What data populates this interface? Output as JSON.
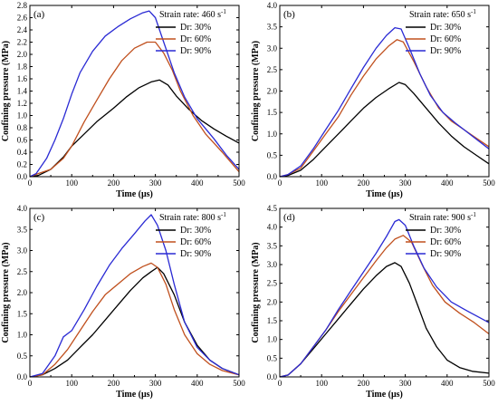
{
  "colors": {
    "s30": "#000000",
    "s60": "#c0501e",
    "s90": "#2a2ad4"
  },
  "chart_data": [
    {
      "type": "line",
      "panel_label": "(a)",
      "legend_title": "Strain rate: 460 s",
      "legend_title_sup": "-1",
      "xlabel": "Time (μs)",
      "ylabel": "Confining pressure (MPa)",
      "xlim": [
        0,
        500
      ],
      "ylim": [
        0,
        2.8
      ],
      "xticks": [
        0,
        100,
        200,
        300,
        400,
        500
      ],
      "yticks": [
        0.0,
        0.2,
        0.4,
        0.6,
        0.8,
        1.0,
        1.2,
        1.4,
        1.6,
        1.8,
        2.0,
        2.2,
        2.4,
        2.6,
        2.8
      ],
      "ytick_labels": [
        "0.0",
        "0.2",
        "0.4",
        "0.6",
        "0.8",
        "1.0",
        "1.2",
        "1.4",
        "1.6",
        "1.8",
        "2.0",
        "2.2",
        "2.4",
        "2.6",
        "2.8"
      ],
      "series": [
        {
          "name": "Dr: 30%",
          "color_key": "s30",
          "points": [
            [
              0,
              0
            ],
            [
              20,
              0.02
            ],
            [
              50,
              0.12
            ],
            [
              80,
              0.32
            ],
            [
              100,
              0.5
            ],
            [
              130,
              0.7
            ],
            [
              160,
              0.9
            ],
            [
              200,
              1.12
            ],
            [
              230,
              1.3
            ],
            [
              260,
              1.45
            ],
            [
              290,
              1.55
            ],
            [
              310,
              1.58
            ],
            [
              330,
              1.5
            ],
            [
              350,
              1.32
            ],
            [
              380,
              1.1
            ],
            [
              410,
              0.92
            ],
            [
              440,
              0.78
            ],
            [
              470,
              0.66
            ],
            [
              500,
              0.55
            ]
          ]
        },
        {
          "name": "Dr: 60%",
          "color_key": "s60",
          "points": [
            [
              0,
              0
            ],
            [
              20,
              0.05
            ],
            [
              50,
              0.12
            ],
            [
              80,
              0.3
            ],
            [
              100,
              0.5
            ],
            [
              130,
              0.9
            ],
            [
              160,
              1.25
            ],
            [
              190,
              1.6
            ],
            [
              220,
              1.9
            ],
            [
              250,
              2.1
            ],
            [
              280,
              2.2
            ],
            [
              300,
              2.2
            ],
            [
              320,
              2.02
            ],
            [
              340,
              1.75
            ],
            [
              360,
              1.4
            ],
            [
              390,
              1.0
            ],
            [
              420,
              0.7
            ],
            [
              460,
              0.4
            ],
            [
              500,
              0.08
            ]
          ]
        },
        {
          "name": "Dr: 90%",
          "color_key": "s90",
          "points": [
            [
              0,
              0
            ],
            [
              15,
              0.05
            ],
            [
              40,
              0.3
            ],
            [
              60,
              0.6
            ],
            [
              80,
              0.95
            ],
            [
              100,
              1.35
            ],
            [
              120,
              1.7
            ],
            [
              150,
              2.05
            ],
            [
              180,
              2.3
            ],
            [
              210,
              2.45
            ],
            [
              240,
              2.58
            ],
            [
              270,
              2.68
            ],
            [
              285,
              2.71
            ],
            [
              300,
              2.6
            ],
            [
              320,
              2.2
            ],
            [
              345,
              1.7
            ],
            [
              370,
              1.3
            ],
            [
              400,
              0.95
            ],
            [
              440,
              0.62
            ],
            [
              470,
              0.35
            ],
            [
              500,
              0.12
            ]
          ]
        }
      ]
    },
    {
      "type": "line",
      "panel_label": "(b)",
      "legend_title": "Strain rate: 650 s",
      "legend_title_sup": "-1",
      "xlabel": "Time (μs)",
      "ylabel": "Confining pressure (MPa)",
      "xlim": [
        0,
        500
      ],
      "ylim": [
        0,
        4.0
      ],
      "xticks": [
        0,
        100,
        200,
        300,
        400,
        500
      ],
      "yticks": [
        0.0,
        0.5,
        1.0,
        1.5,
        2.0,
        2.5,
        3.0,
        3.5,
        4.0
      ],
      "ytick_labels": [
        "0.0",
        "0.5",
        "1.0",
        "1.5",
        "2.0",
        "2.5",
        "3.0",
        "3.5",
        "4.0"
      ],
      "series": [
        {
          "name": "Dr: 30%",
          "color_key": "s30",
          "points": [
            [
              0,
              0
            ],
            [
              20,
              0.03
            ],
            [
              50,
              0.15
            ],
            [
              80,
              0.4
            ],
            [
              110,
              0.7
            ],
            [
              140,
              1.0
            ],
            [
              170,
              1.3
            ],
            [
              200,
              1.6
            ],
            [
              230,
              1.85
            ],
            [
              260,
              2.05
            ],
            [
              285,
              2.2
            ],
            [
              300,
              2.15
            ],
            [
              320,
              1.95
            ],
            [
              350,
              1.6
            ],
            [
              380,
              1.25
            ],
            [
              410,
              0.95
            ],
            [
              440,
              0.7
            ],
            [
              470,
              0.5
            ],
            [
              500,
              0.3
            ]
          ]
        },
        {
          "name": "Dr: 60%",
          "color_key": "s60",
          "points": [
            [
              0,
              0
            ],
            [
              20,
              0.05
            ],
            [
              50,
              0.2
            ],
            [
              80,
              0.6
            ],
            [
              110,
              1.0
            ],
            [
              140,
              1.4
            ],
            [
              170,
              1.9
            ],
            [
              200,
              2.35
            ],
            [
              230,
              2.75
            ],
            [
              260,
              3.05
            ],
            [
              280,
              3.2
            ],
            [
              295,
              3.15
            ],
            [
              320,
              2.7
            ],
            [
              350,
              2.1
            ],
            [
              380,
              1.6
            ],
            [
              410,
              1.3
            ],
            [
              440,
              1.1
            ],
            [
              470,
              0.9
            ],
            [
              500,
              0.7
            ]
          ]
        },
        {
          "name": "Dr: 90%",
          "color_key": "s90",
          "points": [
            [
              0,
              0
            ],
            [
              20,
              0.05
            ],
            [
              50,
              0.25
            ],
            [
              80,
              0.65
            ],
            [
              110,
              1.1
            ],
            [
              140,
              1.55
            ],
            [
              170,
              2.05
            ],
            [
              200,
              2.55
            ],
            [
              230,
              3.0
            ],
            [
              255,
              3.3
            ],
            [
              275,
              3.48
            ],
            [
              290,
              3.45
            ],
            [
              310,
              3.0
            ],
            [
              335,
              2.4
            ],
            [
              360,
              1.9
            ],
            [
              390,
              1.5
            ],
            [
              420,
              1.25
            ],
            [
              460,
              0.95
            ],
            [
              500,
              0.65
            ]
          ]
        }
      ]
    },
    {
      "type": "line",
      "panel_label": "(c)",
      "legend_title": "Strain rate: 800 s",
      "legend_title_sup": "-1",
      "xlabel": "Time (μs)",
      "ylabel": "Confining pressure (MPa)",
      "xlim": [
        0,
        500
      ],
      "ylim": [
        0,
        4.0
      ],
      "xticks": [
        0,
        100,
        200,
        300,
        400,
        500
      ],
      "yticks": [
        0.0,
        0.5,
        1.0,
        1.5,
        2.0,
        2.5,
        3.0,
        3.5,
        4.0
      ],
      "ytick_labels": [
        "0.0",
        "0.5",
        "1.0",
        "1.5",
        "2.0",
        "2.5",
        "3.0",
        "3.5",
        "4.0"
      ],
      "series": [
        {
          "name": "Dr: 30%",
          "color_key": "s30",
          "points": [
            [
              0,
              0
            ],
            [
              30,
              0.05
            ],
            [
              60,
              0.2
            ],
            [
              90,
              0.4
            ],
            [
              120,
              0.7
            ],
            [
              150,
              1.0
            ],
            [
              180,
              1.35
            ],
            [
              210,
              1.7
            ],
            [
              240,
              2.05
            ],
            [
              270,
              2.35
            ],
            [
              290,
              2.5
            ],
            [
              305,
              2.6
            ],
            [
              320,
              2.45
            ],
            [
              345,
              1.95
            ],
            [
              370,
              1.3
            ],
            [
              400,
              0.75
            ],
            [
              430,
              0.4
            ],
            [
              460,
              0.2
            ],
            [
              500,
              0.05
            ]
          ]
        },
        {
          "name": "Dr: 60%",
          "color_key": "s60",
          "points": [
            [
              0,
              0
            ],
            [
              30,
              0.05
            ],
            [
              60,
              0.3
            ],
            [
              90,
              0.65
            ],
            [
              120,
              1.1
            ],
            [
              150,
              1.55
            ],
            [
              180,
              1.95
            ],
            [
              210,
              2.2
            ],
            [
              240,
              2.45
            ],
            [
              270,
              2.62
            ],
            [
              290,
              2.7
            ],
            [
              305,
              2.6
            ],
            [
              325,
              2.2
            ],
            [
              345,
              1.6
            ],
            [
              370,
              1.0
            ],
            [
              400,
              0.55
            ],
            [
              430,
              0.3
            ],
            [
              460,
              0.15
            ],
            [
              500,
              0.05
            ]
          ]
        },
        {
          "name": "Dr: 90%",
          "color_key": "s90",
          "points": [
            [
              0,
              0
            ],
            [
              30,
              0.08
            ],
            [
              60,
              0.5
            ],
            [
              80,
              0.95
            ],
            [
              100,
              1.1
            ],
            [
              130,
              1.6
            ],
            [
              160,
              2.15
            ],
            [
              190,
              2.65
            ],
            [
              220,
              3.05
            ],
            [
              250,
              3.4
            ],
            [
              275,
              3.7
            ],
            [
              290,
              3.85
            ],
            [
              305,
              3.6
            ],
            [
              325,
              3.0
            ],
            [
              345,
              2.2
            ],
            [
              370,
              1.3
            ],
            [
              400,
              0.7
            ],
            [
              430,
              0.4
            ],
            [
              460,
              0.2
            ],
            [
              500,
              0.05
            ]
          ]
        }
      ]
    },
    {
      "type": "line",
      "panel_label": "(d)",
      "legend_title": "Strain rate: 900 s",
      "legend_title_sup": "-1",
      "xlabel": "Time (μs)",
      "ylabel": "Confining pressure (MPa)",
      "xlim": [
        0,
        500
      ],
      "ylim": [
        0,
        4.5
      ],
      "xticks": [
        0,
        100,
        200,
        300,
        400,
        500
      ],
      "yticks": [
        0.0,
        0.5,
        1.0,
        1.5,
        2.0,
        2.5,
        3.0,
        3.5,
        4.0,
        4.5
      ],
      "ytick_labels": [
        "0.0",
        "0.5",
        "1.0",
        "1.5",
        "2.0",
        "2.5",
        "3.0",
        "3.5",
        "4.0",
        "4.5"
      ],
      "series": [
        {
          "name": "Dr: 30%",
          "color_key": "s30",
          "points": [
            [
              0,
              0
            ],
            [
              20,
              0.05
            ],
            [
              50,
              0.35
            ],
            [
              80,
              0.75
            ],
            [
              110,
              1.15
            ],
            [
              140,
              1.55
            ],
            [
              170,
              1.95
            ],
            [
              200,
              2.35
            ],
            [
              230,
              2.7
            ],
            [
              255,
              2.95
            ],
            [
              275,
              3.05
            ],
            [
              290,
              2.95
            ],
            [
              310,
              2.5
            ],
            [
              330,
              1.9
            ],
            [
              350,
              1.3
            ],
            [
              375,
              0.8
            ],
            [
              400,
              0.45
            ],
            [
              430,
              0.25
            ],
            [
              460,
              0.15
            ],
            [
              500,
              0.1
            ]
          ]
        },
        {
          "name": "Dr: 60%",
          "color_key": "s60",
          "points": [
            [
              0,
              0
            ],
            [
              20,
              0.05
            ],
            [
              50,
              0.35
            ],
            [
              80,
              0.8
            ],
            [
              110,
              1.25
            ],
            [
              140,
              1.75
            ],
            [
              170,
              2.2
            ],
            [
              200,
              2.65
            ],
            [
              230,
              3.1
            ],
            [
              255,
              3.45
            ],
            [
              275,
              3.68
            ],
            [
              295,
              3.78
            ],
            [
              315,
              3.6
            ],
            [
              340,
              3.0
            ],
            [
              365,
              2.45
            ],
            [
              395,
              2.0
            ],
            [
              430,
              1.7
            ],
            [
              465,
              1.45
            ],
            [
              500,
              1.15
            ]
          ]
        },
        {
          "name": "Dr: 90%",
          "color_key": "s90",
          "points": [
            [
              0,
              0
            ],
            [
              20,
              0.05
            ],
            [
              50,
              0.35
            ],
            [
              80,
              0.8
            ],
            [
              110,
              1.25
            ],
            [
              140,
              1.8
            ],
            [
              170,
              2.3
            ],
            [
              200,
              2.8
            ],
            [
              230,
              3.3
            ],
            [
              255,
              3.75
            ],
            [
              275,
              4.15
            ],
            [
              285,
              4.2
            ],
            [
              300,
              4.05
            ],
            [
              320,
              3.5
            ],
            [
              345,
              2.9
            ],
            [
              375,
              2.4
            ],
            [
              410,
              2.0
            ],
            [
              450,
              1.75
            ],
            [
              500,
              1.45
            ]
          ]
        }
      ]
    }
  ]
}
